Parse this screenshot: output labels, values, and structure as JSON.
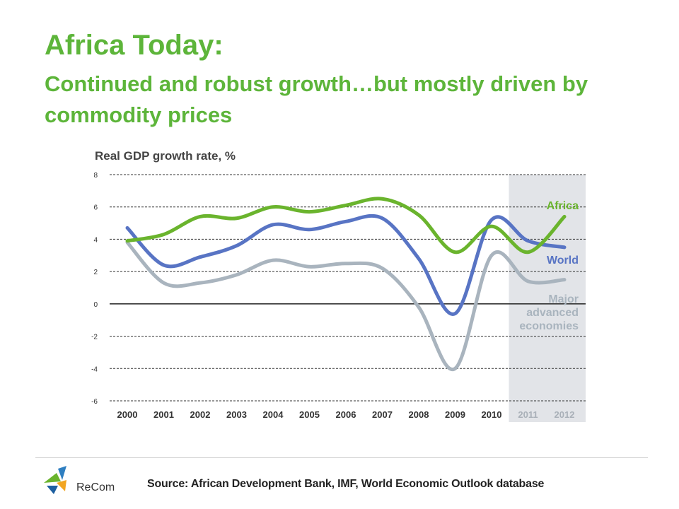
{
  "slide": {
    "title": "Africa Today:",
    "subtitle": "Continued and robust growth…but mostly driven by commodity prices"
  },
  "footer": {
    "logo_text": "ReCom",
    "source": "Source:  African Development Bank, IMF, World Economic Outlook database"
  },
  "colors": {
    "africa": "#6ab42d",
    "world": "#5874c4",
    "advanced": "#a9b4be",
    "forecast_band": "#e2e4e8",
    "title": "#5db53a"
  },
  "chart_data": {
    "type": "line",
    "title": "Real GDP growth rate, %",
    "x": [
      "2000",
      "2001",
      "2002",
      "2003",
      "2004",
      "2005",
      "2006",
      "2007",
      "2008",
      "2009",
      "2010",
      "2011",
      "2012"
    ],
    "forecast_from": "2011",
    "ylim": [
      -6,
      8
    ],
    "yticks": [
      8,
      6,
      4,
      2,
      0,
      -2,
      -4,
      -6
    ],
    "grid": true,
    "series": [
      {
        "name": "Africa",
        "values": [
          3.9,
          4.3,
          5.4,
          5.3,
          6.0,
          5.7,
          6.1,
          6.5,
          5.5,
          3.2,
          4.8,
          3.2,
          5.4
        ]
      },
      {
        "name": "World",
        "values": [
          4.7,
          2.4,
          2.9,
          3.6,
          4.9,
          4.6,
          5.1,
          5.3,
          2.8,
          -0.6,
          5.2,
          3.9,
          3.5
        ]
      },
      {
        "name": "Major advanced economies",
        "values": [
          3.8,
          1.3,
          1.3,
          1.8,
          2.7,
          2.3,
          2.5,
          2.2,
          -0.2,
          -4.0,
          3.0,
          1.4,
          1.5
        ]
      }
    ]
  }
}
